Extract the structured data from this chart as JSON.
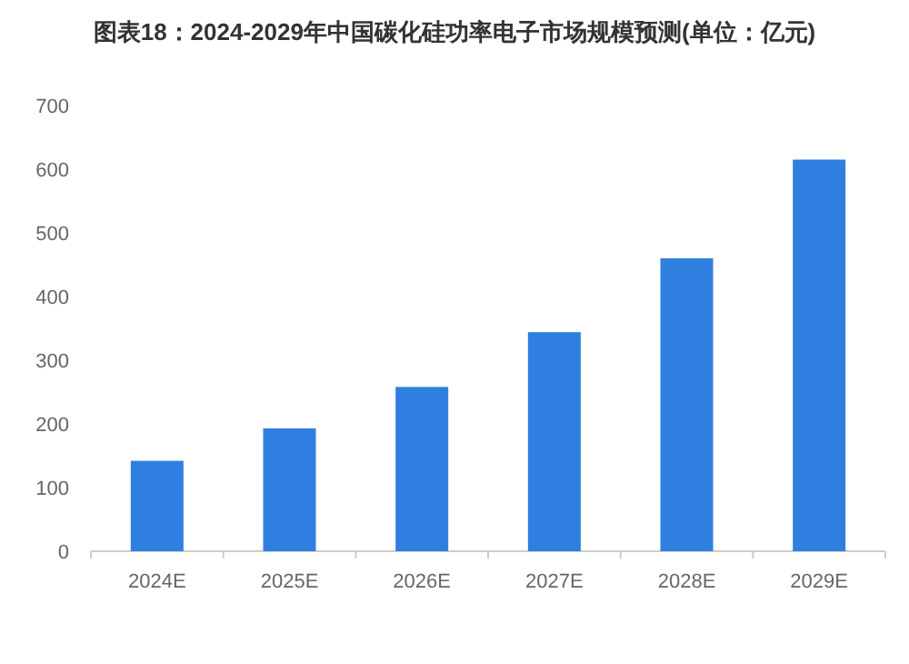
{
  "chart_data": {
    "type": "bar",
    "title": "图表18：2024-2029年中国碳化硅功率电子市场规模预测(单位：亿元)",
    "categories": [
      "2024E",
      "2025E",
      "2026E",
      "2027E",
      "2028E",
      "2029E"
    ],
    "values": [
      142,
      193,
      258,
      344,
      460,
      615
    ],
    "color": "#2f7fe0",
    "ylim": [
      0,
      700
    ],
    "yticks": [
      0,
      100,
      200,
      300,
      400,
      500,
      600,
      700
    ],
    "grid": false
  }
}
